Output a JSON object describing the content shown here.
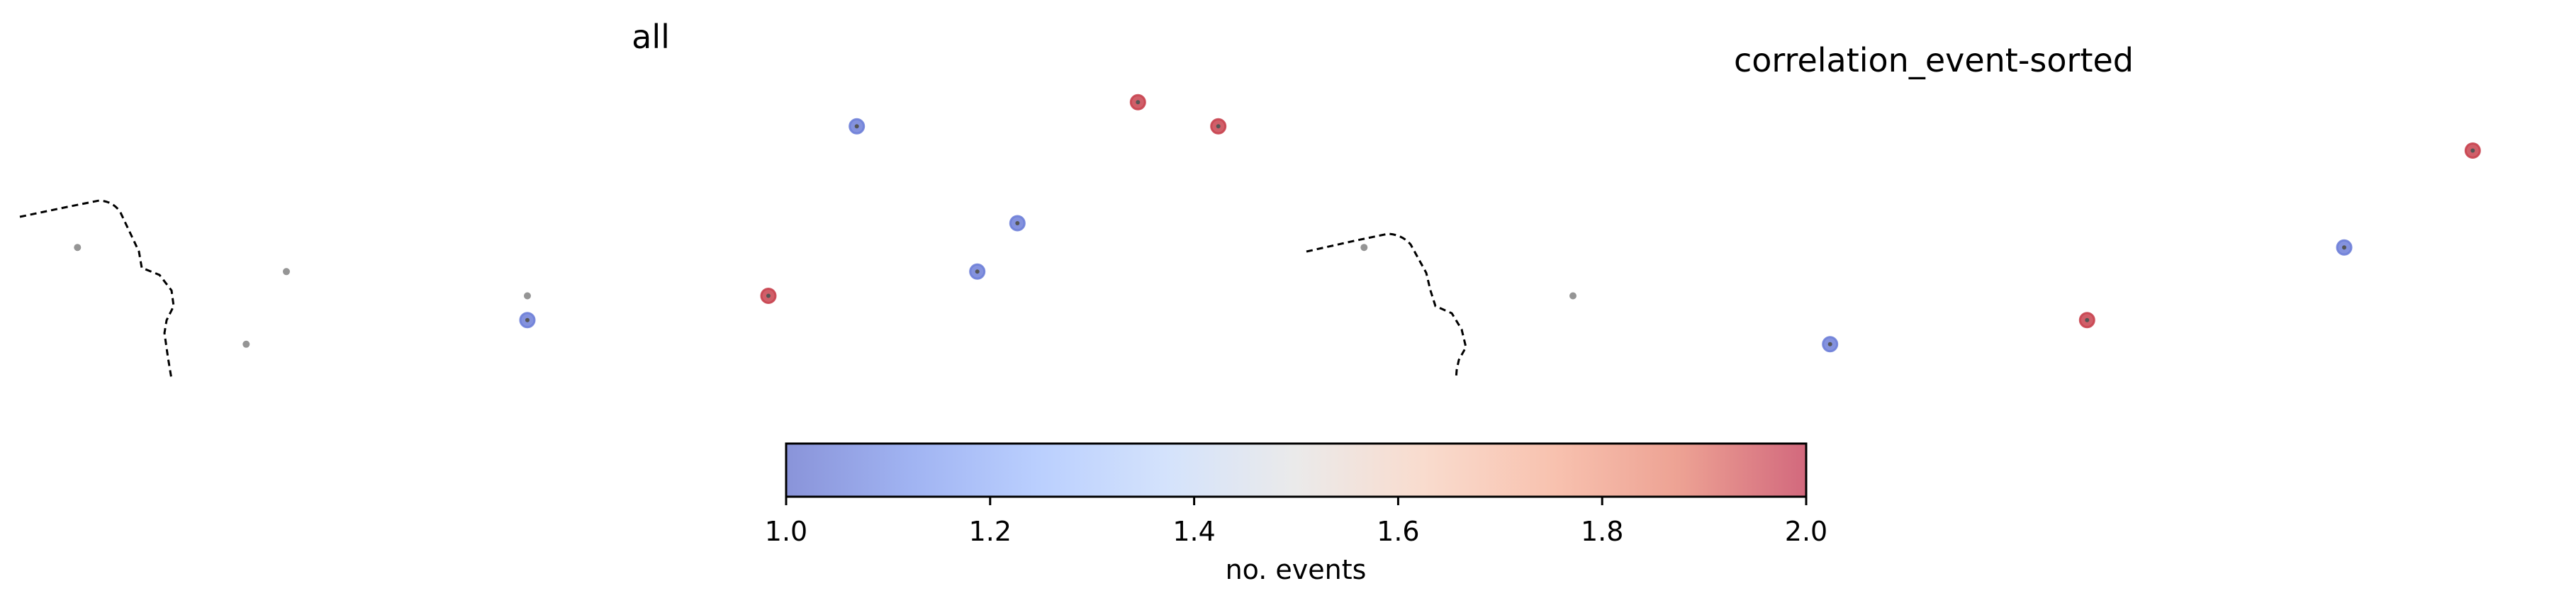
{
  "chart_data": [
    {
      "type": "scatter",
      "title": "all",
      "points": [
        {
          "x": 0.7,
          "y": 3.5,
          "events": 0
        },
        {
          "x": 3.3,
          "y": 3.0,
          "events": 0
        },
        {
          "x": 2.8,
          "y": 1.5,
          "events": 0
        },
        {
          "x": 6.3,
          "y": 2.5,
          "events": 0
        },
        {
          "x": 6.3,
          "y": 2.0,
          "events": 1
        },
        {
          "x": 9.3,
          "y": 2.5,
          "events": 2
        },
        {
          "x": 10.4,
          "y": 6.0,
          "events": 1
        },
        {
          "x": 11.9,
          "y": 3.0,
          "events": 1
        },
        {
          "x": 12.4,
          "y": 4.0,
          "events": 1
        },
        {
          "x": 13.9,
          "y": 6.5,
          "events": 2
        },
        {
          "x": 14.9,
          "y": 6.0,
          "events": 2
        }
      ]
    },
    {
      "type": "scatter",
      "title": "correlation_event-sorted",
      "points": [
        {
          "x": 0.7,
          "y": 3.5,
          "events": 0
        },
        {
          "x": 3.3,
          "y": 2.5,
          "events": 0
        },
        {
          "x": 6.5,
          "y": 1.5,
          "events": 1
        },
        {
          "x": 9.7,
          "y": 2.0,
          "events": 2
        },
        {
          "x": 12.9,
          "y": 3.5,
          "events": 1
        },
        {
          "x": 14.5,
          "y": 5.5,
          "events": 2
        }
      ]
    }
  ],
  "colorbar": {
    "label": "no. events",
    "range": [
      1.0,
      2.0
    ],
    "ticks": [
      "1.0",
      "1.2",
      "1.4",
      "1.6",
      "1.8",
      "2.0"
    ],
    "colormap": "coolwarm",
    "low_color": "#6e7fd8",
    "high_color": "#c8434f",
    "zero_color": "#8a8a8a"
  }
}
